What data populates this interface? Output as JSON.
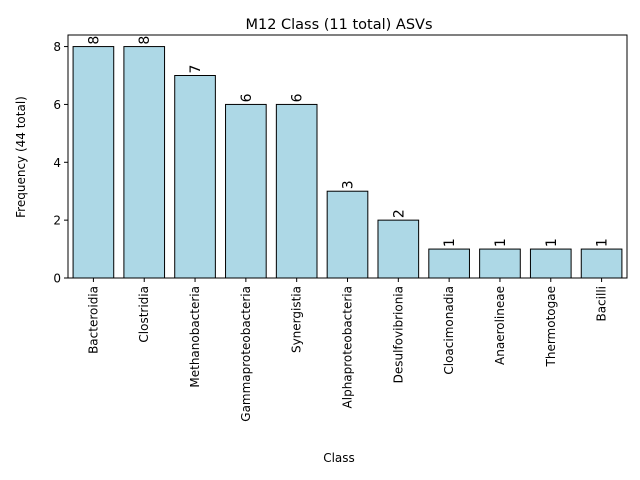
{
  "chart_data": {
    "type": "bar",
    "title": "M12 Class (11 total) ASVs",
    "xlabel": "Class",
    "ylabel": "Frequency (44 total)",
    "categories": [
      "Bacteroidia",
      "Clostridia",
      "Methanobacteria",
      "Gammaproteobacteria",
      "Synergistia",
      "Alphaproteobacteria",
      "Desulfovibrionia",
      "Cloacimonadia",
      "Anaerolineae",
      "Thermotogae",
      "Bacilli"
    ],
    "values": [
      8,
      8,
      7,
      6,
      6,
      3,
      2,
      1,
      1,
      1,
      1
    ],
    "data_labels": [
      "8",
      "8",
      "7",
      "6",
      "6",
      "3",
      "2",
      "1",
      "1",
      "1",
      "1"
    ],
    "ylim": [
      0,
      8.4
    ],
    "yticks": [
      0,
      2,
      4,
      6,
      8
    ],
    "ytick_labels": [
      "0",
      "2",
      "4",
      "6",
      "8"
    ],
    "grid": false,
    "legend": "none",
    "bar_color": "#add8e6",
    "bar_edge_color": "#000000"
  }
}
